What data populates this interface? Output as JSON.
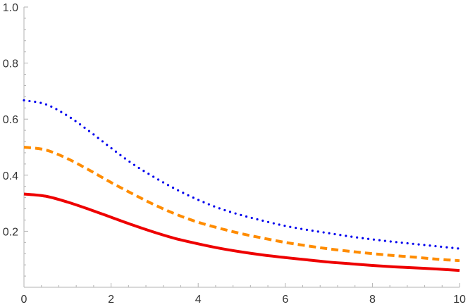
{
  "chart_data": {
    "type": "line",
    "title": "",
    "xlabel": "",
    "ylabel": "",
    "xlim": [
      0,
      10
    ],
    "ylim": [
      0,
      1.0
    ],
    "x_ticks": [
      0,
      2,
      4,
      6,
      8,
      10
    ],
    "x_tick_labels": [
      "0",
      "2",
      "4",
      "6",
      "8",
      "10"
    ],
    "y_ticks": [
      0.2,
      0.4,
      0.6,
      0.8,
      1.0
    ],
    "y_tick_labels": [
      "0.2",
      "0.4",
      "0.6",
      "0.8",
      "1.0"
    ],
    "grid": false,
    "x": [
      0,
      0.5,
      1,
      1.5,
      2,
      2.5,
      3,
      3.5,
      4,
      4.5,
      5,
      5.5,
      6,
      6.5,
      7,
      7.5,
      8,
      8.5,
      9,
      9.5,
      10
    ],
    "series": [
      {
        "name": "dotted-blue",
        "color": "#0000ee",
        "style": "dotted",
        "values": [
          0.667,
          0.653,
          0.612,
          0.557,
          0.497,
          0.44,
          0.392,
          0.349,
          0.312,
          0.281,
          0.257,
          0.237,
          0.219,
          0.205,
          0.193,
          0.181,
          0.171,
          0.162,
          0.154,
          0.146,
          0.138
        ]
      },
      {
        "name": "dashed-orange",
        "color": "#ff8c00",
        "style": "dashed",
        "values": [
          0.5,
          0.49,
          0.459,
          0.418,
          0.374,
          0.333,
          0.294,
          0.26,
          0.232,
          0.21,
          0.191,
          0.175,
          0.16,
          0.148,
          0.137,
          0.128,
          0.12,
          0.113,
          0.107,
          0.1,
          0.095
        ]
      },
      {
        "name": "solid-red",
        "color": "#ee0000",
        "style": "solid",
        "values": [
          0.333,
          0.325,
          0.304,
          0.278,
          0.25,
          0.222,
          0.196,
          0.173,
          0.155,
          0.139,
          0.126,
          0.115,
          0.106,
          0.098,
          0.09,
          0.084,
          0.078,
          0.073,
          0.069,
          0.065,
          0.06
        ]
      }
    ]
  }
}
